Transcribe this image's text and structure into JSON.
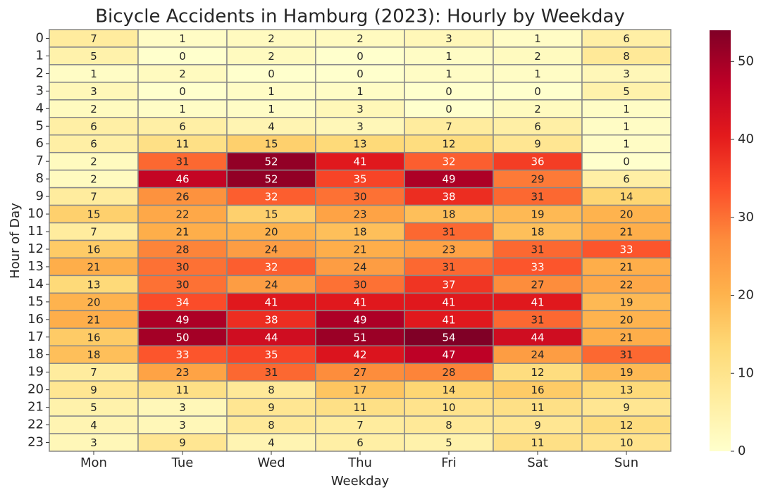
{
  "chart_data": {
    "type": "heatmap",
    "title": "Bicycle Accidents in Hamburg (2023): Hourly by Weekday",
    "x_label": "Weekday",
    "y_label": "Hour of Day",
    "x_categories": [
      "Mon",
      "Tue",
      "Wed",
      "Thu",
      "Fri",
      "Sat",
      "Sun"
    ],
    "y_categories": [
      "0",
      "1",
      "2",
      "3",
      "4",
      "5",
      "6",
      "7",
      "8",
      "9",
      "10",
      "11",
      "12",
      "13",
      "14",
      "15",
      "16",
      "17",
      "18",
      "19",
      "20",
      "21",
      "22",
      "23"
    ],
    "values": [
      [
        7,
        1,
        2,
        2,
        3,
        1,
        6
      ],
      [
        5,
        0,
        2,
        0,
        1,
        2,
        8
      ],
      [
        1,
        2,
        0,
        0,
        1,
        1,
        3
      ],
      [
        3,
        0,
        1,
        1,
        0,
        0,
        5
      ],
      [
        2,
        1,
        1,
        3,
        0,
        2,
        1
      ],
      [
        6,
        6,
        4,
        3,
        7,
        6,
        1
      ],
      [
        6,
        11,
        15,
        13,
        12,
        9,
        1
      ],
      [
        2,
        31,
        52,
        41,
        32,
        36,
        0
      ],
      [
        2,
        46,
        52,
        35,
        49,
        29,
        6
      ],
      [
        7,
        26,
        32,
        30,
        38,
        31,
        14
      ],
      [
        15,
        22,
        15,
        23,
        18,
        19,
        20
      ],
      [
        7,
        21,
        20,
        18,
        31,
        18,
        21
      ],
      [
        16,
        28,
        24,
        21,
        23,
        31,
        33
      ],
      [
        21,
        30,
        32,
        24,
        31,
        33,
        21
      ],
      [
        13,
        30,
        24,
        30,
        37,
        27,
        22
      ],
      [
        20,
        34,
        41,
        41,
        41,
        41,
        19
      ],
      [
        21,
        49,
        38,
        49,
        41,
        31,
        20
      ],
      [
        16,
        50,
        44,
        51,
        54,
        44,
        21
      ],
      [
        18,
        33,
        35,
        42,
        47,
        24,
        31
      ],
      [
        7,
        23,
        31,
        27,
        28,
        12,
        19
      ],
      [
        9,
        11,
        8,
        17,
        14,
        16,
        13
      ],
      [
        5,
        3,
        9,
        11,
        10,
        11,
        9
      ],
      [
        4,
        3,
        8,
        7,
        8,
        9,
        12
      ],
      [
        3,
        9,
        4,
        6,
        5,
        11,
        10
      ]
    ],
    "colormap": "YlOrRd",
    "clim": [
      0,
      54
    ],
    "cticks": [
      0,
      10,
      20,
      30,
      40,
      50
    ]
  }
}
